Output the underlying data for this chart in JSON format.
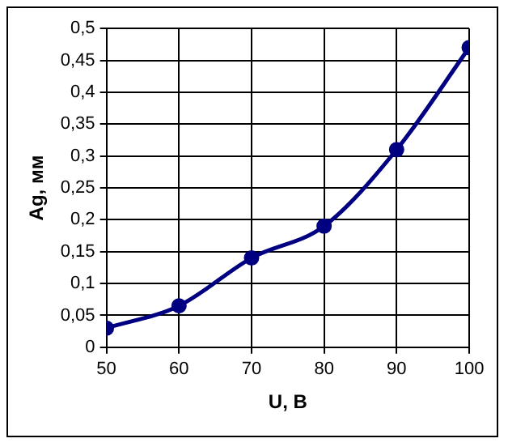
{
  "chart_data": {
    "type": "line",
    "xlabel": "U, В",
    "ylabel": "Ag, мм",
    "x": [
      50,
      60,
      70,
      80,
      90,
      100
    ],
    "series": [
      {
        "color": "#000080",
        "values": [
          0.03,
          0.065,
          0.14,
          0.19,
          0.31,
          0.47
        ]
      }
    ],
    "xlim": [
      50,
      100
    ],
    "xticks": [
      50,
      60,
      70,
      80,
      90,
      100
    ],
    "ylim": [
      0,
      0.5
    ],
    "yticks": [
      {
        "value": 0,
        "label": "0"
      },
      {
        "value": 0.05,
        "label": "0,05"
      },
      {
        "value": 0.1,
        "label": "0,1"
      },
      {
        "value": 0.15,
        "label": "0,15"
      },
      {
        "value": 0.2,
        "label": "0,2"
      },
      {
        "value": 0.25,
        "label": "0,25"
      },
      {
        "value": 0.3,
        "label": "0,3"
      },
      {
        "value": 0.35,
        "label": "0,35"
      },
      {
        "value": 0.4,
        "label": "0,4"
      },
      {
        "value": 0.45,
        "label": "0,45"
      },
      {
        "value": 0.5,
        "label": "0,5"
      }
    ],
    "grid": true,
    "legend": false,
    "marker": "circle",
    "line_style": "solid"
  }
}
